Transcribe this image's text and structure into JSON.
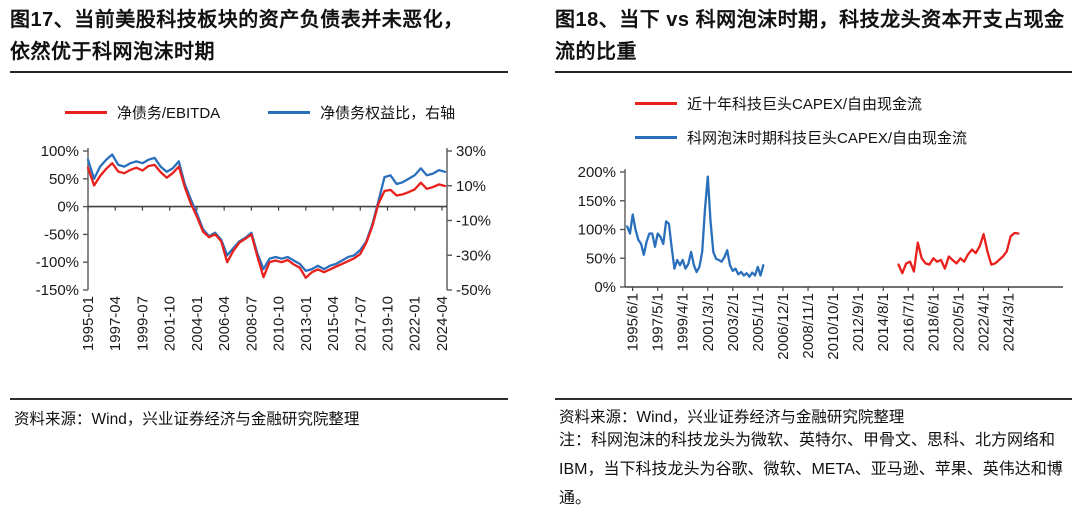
{
  "colors": {
    "red": "#e8211d",
    "blue": "#2a6fbc",
    "axis": "#595959",
    "axis_dark": "#404040"
  },
  "panels": {
    "left": {
      "title": "图17、当前美股科技板块的资产负债表并未恶化，依然优于科网泡沫时期",
      "source": "资料来源：Wind，兴业证券经济与金融研究院整理"
    },
    "right": {
      "title": "图18、当下 vs 科网泡沫时期，科技龙头资本开支占现金流的比重",
      "source": "资料来源：Wind，兴业证券经济与金融研究院整理",
      "note": "注：科网泡沫的科技龙头为微软、英特尔、甲骨文、思科、北方网络和 IBM，当下科技龙头为谷歌、微软、META、亚马逊、苹果、英伟达和博通。"
    }
  },
  "chart_data": [
    {
      "type": "line",
      "title": "图17、当前美股科技板块的资产负债表并未恶化，依然优于科网泡沫时期",
      "legend_position": "top",
      "grid": false,
      "x_unit": "months since 1995-01",
      "x_domain": {
        "min": 0,
        "max": 356
      },
      "x_first_tick": 0,
      "x_tick_step_months": 27,
      "x_tick_labels": [
        "1995-01",
        "1997-04",
        "1999-07",
        "2001-10",
        "2004-01",
        "2006-04",
        "2008-07",
        "2010-10",
        "2013-01",
        "2015-04",
        "2017-07",
        "2019-10",
        "2022-01",
        "2024-04"
      ],
      "left_axis": {
        "min": -150,
        "max": 100,
        "ticks": [
          {
            "v": 100,
            "label": "100%"
          },
          {
            "v": 50,
            "label": "50%"
          },
          {
            "v": 0,
            "label": "0%"
          },
          {
            "v": -50,
            "label": "-50%"
          },
          {
            "v": -100,
            "label": "-100%"
          },
          {
            "v": -150,
            "label": "-150%"
          }
        ]
      },
      "right_axis": {
        "min": -50,
        "max": 30,
        "ticks": [
          {
            "v": 30,
            "label": "30%"
          },
          {
            "v": 10,
            "label": "10%"
          },
          {
            "v": -10,
            "label": "-10%"
          },
          {
            "v": -30,
            "label": "-30%"
          },
          {
            "v": -50,
            "label": "-50%"
          }
        ]
      },
      "series": [
        {
          "name": "净债务/EBITDA",
          "color": "red",
          "axis": "left",
          "x_start": 0,
          "x_step": 6,
          "values": [
            70,
            38,
            55,
            68,
            78,
            63,
            60,
            66,
            70,
            65,
            73,
            75,
            62,
            52,
            60,
            72,
            35,
            5,
            -18,
            -45,
            -55,
            -50,
            -62,
            -100,
            -80,
            -65,
            -58,
            -50,
            -90,
            -127,
            -100,
            -97,
            -100,
            -96,
            -104,
            -110,
            -128,
            -118,
            -113,
            -118,
            -113,
            -108,
            -103,
            -98,
            -93,
            -85,
            -65,
            -35,
            5,
            28,
            30,
            20,
            22,
            26,
            31,
            43,
            32,
            35,
            40,
            37
          ]
        },
        {
          "name": "净债务权益比，右轴",
          "color": "blue",
          "axis": "right",
          "x_start": 0,
          "x_step": 6,
          "values": [
            25,
            14,
            21,
            25,
            28,
            22,
            21,
            23,
            24,
            23,
            25,
            26,
            21,
            18,
            20,
            24,
            11,
            2,
            -6,
            -15,
            -19,
            -17,
            -21,
            -30,
            -26,
            -22,
            -20,
            -17,
            -29,
            -38,
            -32,
            -31,
            -32,
            -31,
            -33,
            -35,
            -39,
            -38,
            -36,
            -38,
            -36,
            -35,
            -33,
            -31,
            -30,
            -27,
            -22,
            -12,
            1,
            15,
            16,
            11,
            12,
            14,
            16,
            20,
            16,
            17,
            19,
            18
          ]
        }
      ]
    },
    {
      "type": "line",
      "title": "图18、当下 vs 科网泡沫时期，科技龙头资本开支占现金流的比重",
      "legend_position": "top",
      "grid": false,
      "x_unit": "months since 1995/1/1",
      "x_domain": {
        "min": -2,
        "max": 400
      },
      "x_first_tick": 5,
      "x_tick_step_months": 23,
      "x_tick_labels": [
        "1995/6/1",
        "1997/5/1",
        "1999/4/1",
        "2001/3/1",
        "2003/2/1",
        "2005/1/1",
        "2006/12/1",
        "2008/11/1",
        "2010/10/1",
        "2012/9/1",
        "2014/8/1",
        "2016/7/1",
        "2018/6/1",
        "2020/5/1",
        "2022/4/1",
        "2024/3/1"
      ],
      "left_axis": {
        "min": 0,
        "max": 200,
        "ticks": [
          {
            "v": 200,
            "label": "200%"
          },
          {
            "v": 150,
            "label": "150%"
          },
          {
            "v": 100,
            "label": "100%"
          },
          {
            "v": 50,
            "label": "50%"
          },
          {
            "v": 0,
            "label": "0%"
          }
        ]
      },
      "series": [
        {
          "name": "近十年科技巨头CAPEX/自由现金流",
          "color": "red",
          "axis": "left",
          "x_start": 249,
          "x_step": 3.55,
          "values": [
            39,
            24,
            41,
            44,
            27,
            77,
            50,
            41,
            39,
            50,
            44,
            47,
            32,
            53,
            47,
            41,
            50,
            44,
            57,
            65,
            59,
            71,
            92,
            62,
            39,
            41,
            47,
            53,
            62,
            88,
            94,
            93
          ]
        },
        {
          "name": "科网泡沫时期科技巨头CAPEX/自由现金流",
          "color": "blue",
          "axis": "left",
          "x_start": 0,
          "x_step": 2.55,
          "values": [
            105,
            93,
            126,
            100,
            82,
            75,
            56,
            79,
            93,
            93,
            70,
            93,
            87,
            75,
            114,
            110,
            70,
            32,
            47,
            38,
            47,
            32,
            40,
            61,
            38,
            26,
            35,
            61,
            136,
            192,
            115,
            61,
            49,
            47,
            44,
            52,
            64,
            38,
            28,
            32,
            22,
            26,
            20,
            24,
            18,
            25,
            20,
            35,
            20,
            38
          ]
        }
      ]
    }
  ]
}
